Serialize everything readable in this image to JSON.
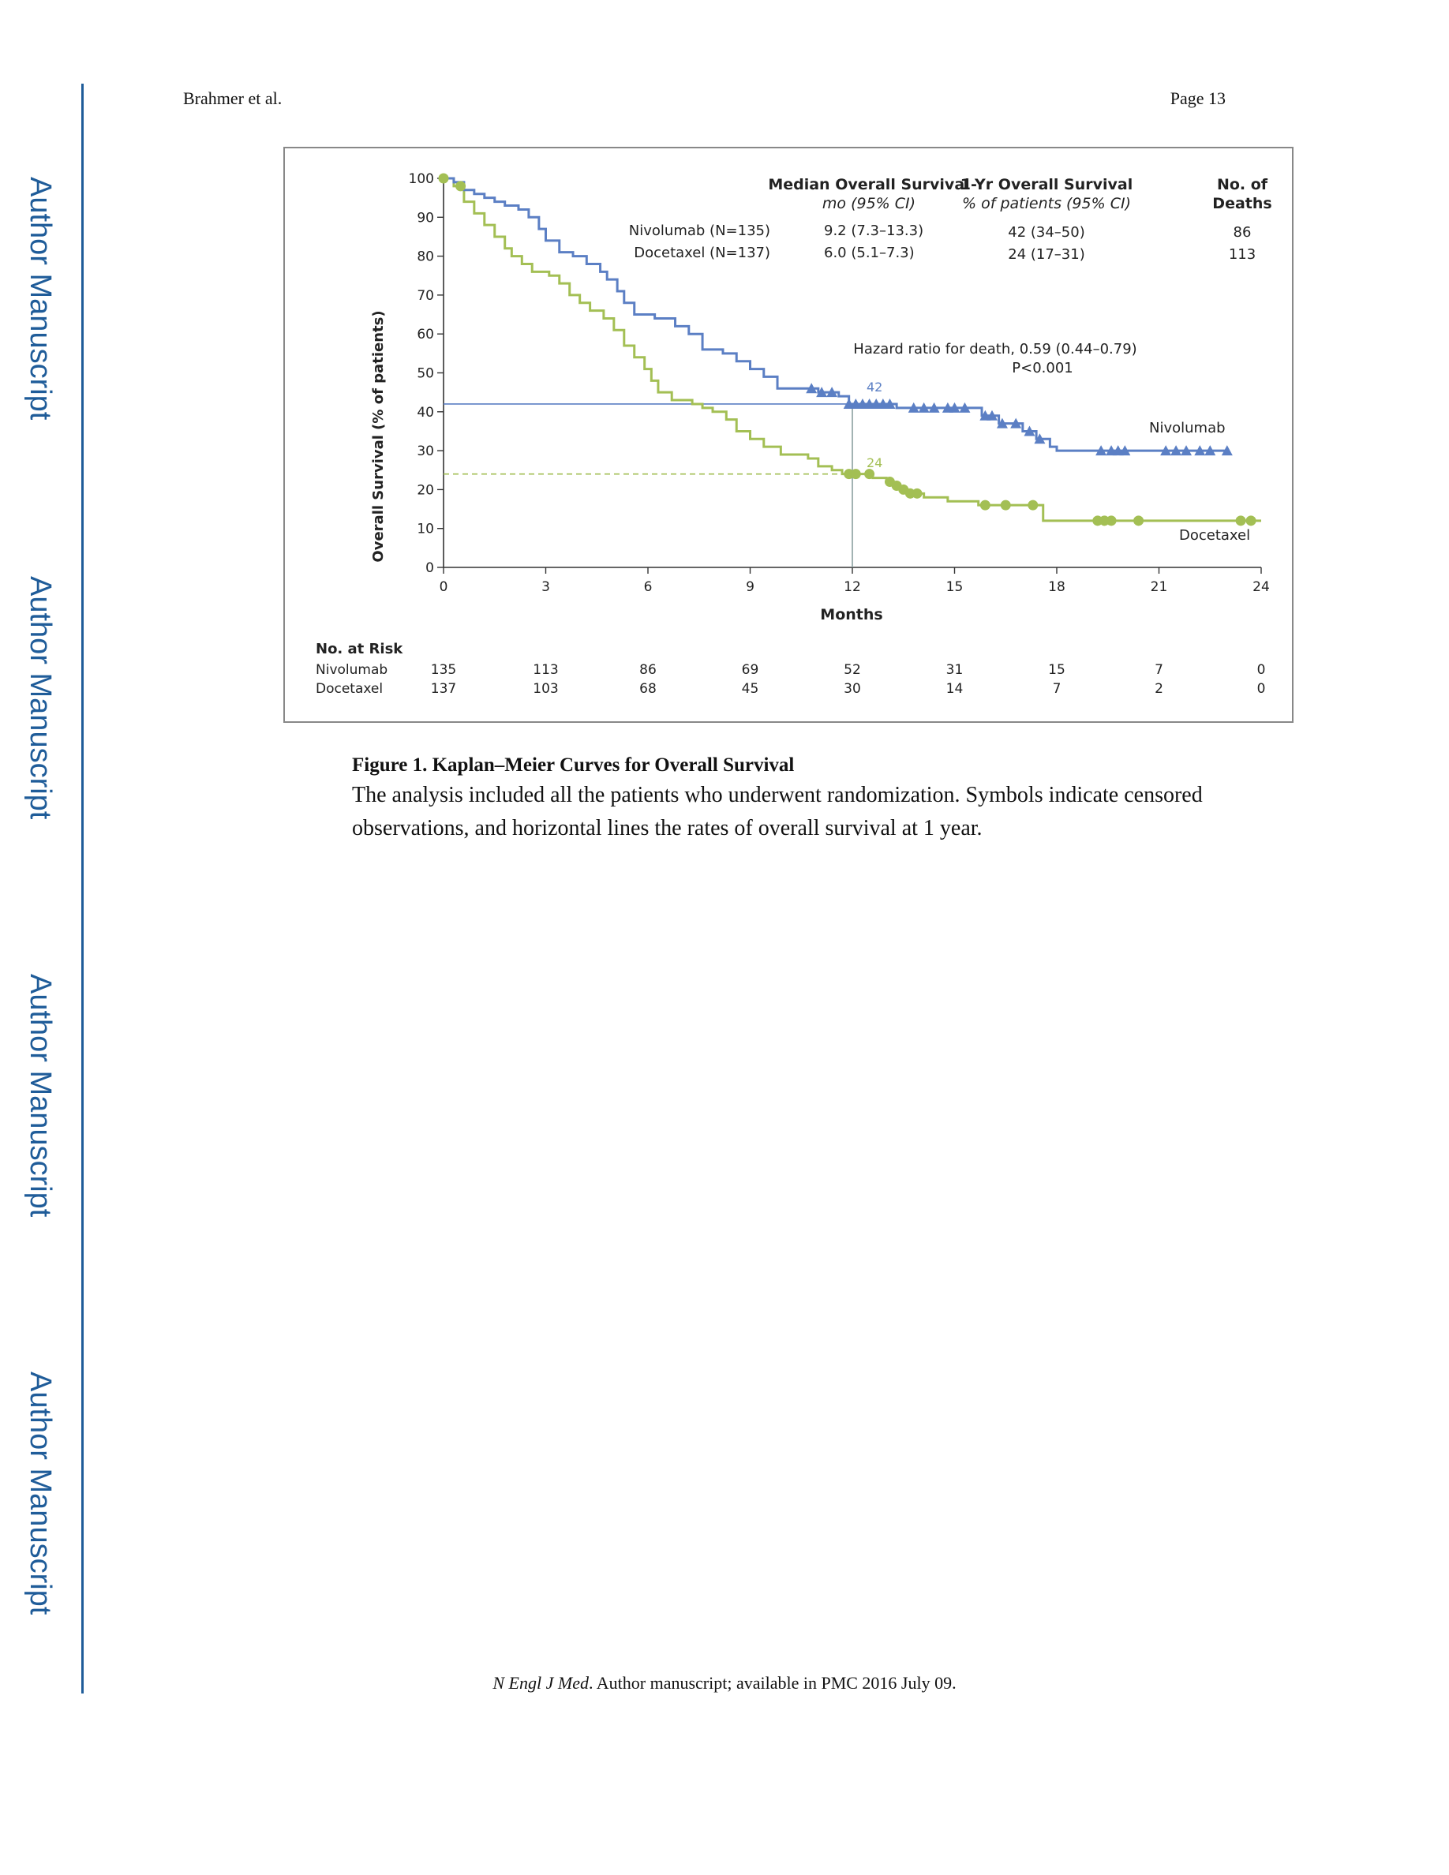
{
  "side_labels": [
    "Author Manuscript",
    "Author Manuscript",
    "Author Manuscript",
    "Author Manuscript"
  ],
  "header": {
    "author": "Brahmer et al.",
    "page": "Page 13"
  },
  "figure": {
    "caption_title": "Figure 1. Kaplan–Meier Curves for Overall Survival",
    "caption_text": "The analysis included all the patients who underwent randomization. Symbols indicate censored observations, and horizontal lines the rates of overall survival at 1 year."
  },
  "footer": {
    "journal": "N Engl J Med",
    "text": ". Author manuscript; available in PMC 2016 July 09."
  },
  "colors": {
    "nivolumab": "#5b7fc4",
    "docetaxel": "#a3bf54",
    "axis": "#333333"
  },
  "chart_data": {
    "type": "line",
    "title": "",
    "xlabel": "Months",
    "ylabel": "Overall Survival (% of patients)",
    "xlim": [
      0,
      24
    ],
    "ylim": [
      0,
      100
    ],
    "xticks": [
      0,
      3,
      6,
      9,
      12,
      15,
      18,
      21,
      24
    ],
    "yticks": [
      0,
      10,
      20,
      30,
      40,
      50,
      60,
      70,
      80,
      90,
      100
    ],
    "table": {
      "headers": {
        "median": "Median Overall Survival",
        "median_sub": "mo (95% CI)",
        "oneyr": "1-Yr Overall Survival",
        "oneyr_sub": "% of patients (95% CI)",
        "deaths": "No. of",
        "deaths2": "Deaths"
      },
      "rows": [
        {
          "arm": "Nivolumab (N=135)",
          "median": "9.2 (7.3–13.3)",
          "oneyr": "42 (34–50)",
          "deaths": "86"
        },
        {
          "arm": "Docetaxel (N=137)",
          "median": "6.0 (5.1–7.3)",
          "oneyr": "24 (17–31)",
          "deaths": "113"
        }
      ]
    },
    "hazard_ratio": "Hazard ratio for death, 0.59 (0.44–0.79)",
    "p_value": "P<0.001",
    "reference": {
      "month": 12,
      "labels": [
        "42",
        "24"
      ]
    },
    "series": [
      {
        "name": "Nivolumab",
        "oneyr_rate": 42,
        "points": [
          [
            0,
            100
          ],
          [
            0.3,
            99
          ],
          [
            0.6,
            97
          ],
          [
            0.9,
            96
          ],
          [
            1.2,
            95
          ],
          [
            1.5,
            94
          ],
          [
            1.8,
            93
          ],
          [
            2.2,
            92
          ],
          [
            2.5,
            90
          ],
          [
            2.8,
            87
          ],
          [
            3.0,
            84
          ],
          [
            3.4,
            81
          ],
          [
            3.8,
            80
          ],
          [
            4.2,
            78
          ],
          [
            4.6,
            76
          ],
          [
            4.8,
            74
          ],
          [
            5.1,
            71
          ],
          [
            5.3,
            68
          ],
          [
            5.6,
            65
          ],
          [
            6.2,
            64
          ],
          [
            6.8,
            62
          ],
          [
            7.2,
            60
          ],
          [
            7.6,
            56
          ],
          [
            8.2,
            55
          ],
          [
            8.6,
            53
          ],
          [
            9.0,
            51
          ],
          [
            9.4,
            49
          ],
          [
            9.8,
            46
          ],
          [
            11.0,
            45
          ],
          [
            11.6,
            44
          ],
          [
            11.9,
            42
          ],
          [
            13.1,
            42
          ],
          [
            13.3,
            41
          ],
          [
            15.5,
            41
          ],
          [
            15.8,
            39
          ],
          [
            16.3,
            37
          ],
          [
            17.0,
            35
          ],
          [
            17.4,
            33
          ],
          [
            17.8,
            31
          ],
          [
            18.0,
            30
          ],
          [
            23.0,
            30
          ]
        ],
        "censor_months": [
          10.8,
          11.1,
          11.4,
          11.9,
          12.1,
          12.3,
          12.5,
          12.7,
          12.9,
          13.1,
          13.8,
          14.1,
          14.4,
          14.8,
          15.0,
          15.3,
          15.9,
          16.1,
          16.4,
          16.8,
          17.2,
          17.5,
          19.3,
          19.6,
          19.8,
          20.0,
          21.2,
          21.5,
          21.8,
          22.2,
          22.5,
          23.0
        ],
        "label": "Nivolumab",
        "at_risk": [
          "135",
          "113",
          "86",
          "69",
          "52",
          "31",
          "15",
          "7",
          "0"
        ]
      },
      {
        "name": "Docetaxel",
        "oneyr_rate": 24,
        "points": [
          [
            0,
            100
          ],
          [
            0.3,
            98
          ],
          [
            0.6,
            94
          ],
          [
            0.9,
            91
          ],
          [
            1.2,
            88
          ],
          [
            1.5,
            85
          ],
          [
            1.8,
            82
          ],
          [
            2.0,
            80
          ],
          [
            2.3,
            78
          ],
          [
            2.6,
            76
          ],
          [
            3.1,
            75
          ],
          [
            3.4,
            73
          ],
          [
            3.7,
            70
          ],
          [
            4.0,
            68
          ],
          [
            4.3,
            66
          ],
          [
            4.7,
            64
          ],
          [
            5.0,
            61
          ],
          [
            5.3,
            57
          ],
          [
            5.6,
            54
          ],
          [
            5.9,
            51
          ],
          [
            6.1,
            48
          ],
          [
            6.3,
            45
          ],
          [
            6.7,
            43
          ],
          [
            7.3,
            42
          ],
          [
            7.6,
            41
          ],
          [
            7.9,
            40
          ],
          [
            8.3,
            38
          ],
          [
            8.6,
            35
          ],
          [
            9.0,
            33
          ],
          [
            9.4,
            31
          ],
          [
            9.9,
            29
          ],
          [
            10.7,
            28
          ],
          [
            11.0,
            26
          ],
          [
            11.4,
            25
          ],
          [
            11.7,
            24
          ],
          [
            12.6,
            23
          ],
          [
            13.0,
            22
          ],
          [
            13.2,
            21
          ],
          [
            13.4,
            20
          ],
          [
            13.7,
            19
          ],
          [
            14.1,
            18
          ],
          [
            14.8,
            17
          ],
          [
            15.7,
            16
          ],
          [
            17.4,
            16
          ],
          [
            17.6,
            12
          ],
          [
            24.0,
            12
          ]
        ],
        "censor_months": [
          0.5,
          11.9,
          12.1,
          12.5,
          13.1,
          13.3,
          13.5,
          13.7,
          13.9,
          15.9,
          16.5,
          17.3,
          19.2,
          19.4,
          19.6,
          20.4,
          23.4,
          23.7
        ],
        "label": "Docetaxel",
        "at_risk": [
          "137",
          "103",
          "68",
          "45",
          "30",
          "14",
          "7",
          "2",
          "0"
        ]
      }
    ],
    "at_risk_title": "No. at Risk"
  }
}
